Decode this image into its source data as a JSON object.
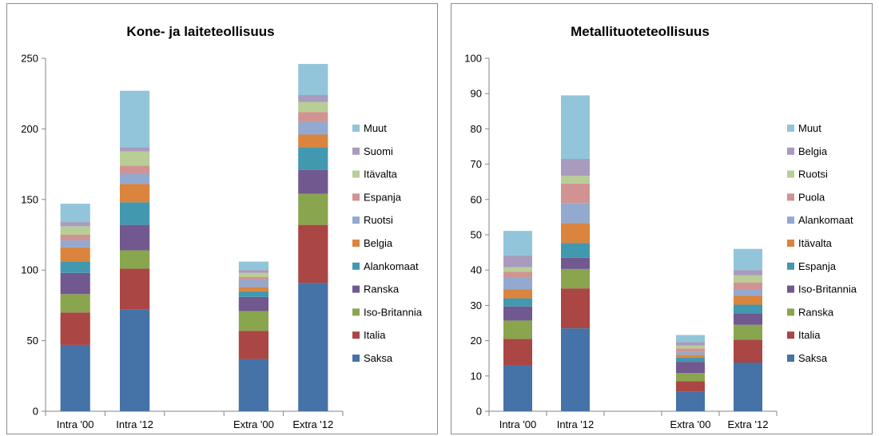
{
  "chart_data": [
    {
      "type": "bar",
      "stacked": true,
      "title": "Kone- ja laiteteollisuus",
      "xlabel": "",
      "ylabel": "",
      "ylim": [
        0,
        250
      ],
      "yticks": [
        0,
        50,
        100,
        150,
        200,
        250
      ],
      "categories": [
        "Intra '00",
        "Intra '12",
        "",
        "Extra '00",
        "Extra '12"
      ],
      "legend_position": "right",
      "grid": false,
      "series": [
        {
          "name": "Saksa",
          "color": "#4572a7",
          "values": [
            47,
            72,
            0,
            37,
            91
          ]
        },
        {
          "name": "Italia",
          "color": "#aa4643",
          "values": [
            23,
            29,
            0,
            20,
            41
          ]
        },
        {
          "name": "Iso-Britannia",
          "color": "#89a54e",
          "values": [
            13,
            13,
            0,
            14,
            22
          ]
        },
        {
          "name": "Ranska",
          "color": "#71588f",
          "values": [
            15,
            18,
            0,
            10,
            17
          ]
        },
        {
          "name": "Alankomaat",
          "color": "#4198af",
          "values": [
            8,
            16,
            0,
            4,
            16
          ]
        },
        {
          "name": "Belgia",
          "color": "#db843d",
          "values": [
            10,
            13,
            0,
            3,
            9
          ]
        },
        {
          "name": "Ruotsi",
          "color": "#93a9cf",
          "values": [
            5,
            7,
            0,
            5,
            9
          ]
        },
        {
          "name": "Espanja",
          "color": "#d19392",
          "values": [
            4,
            6,
            0,
            2,
            7
          ]
        },
        {
          "name": "Itävalta",
          "color": "#b9cd96",
          "values": [
            6,
            10,
            0,
            3,
            7
          ]
        },
        {
          "name": "Suomi",
          "color": "#a99bbd",
          "values": [
            3,
            3,
            0,
            2,
            5
          ]
        },
        {
          "name": "Muut",
          "color": "#92c5d9",
          "values": [
            13,
            40,
            0,
            6,
            22
          ]
        }
      ]
    },
    {
      "type": "bar",
      "stacked": true,
      "title": "Metallituoteteollisuus",
      "xlabel": "",
      "ylabel": "",
      "ylim": [
        0,
        100
      ],
      "yticks": [
        0,
        10,
        20,
        30,
        40,
        50,
        60,
        70,
        80,
        90,
        100
      ],
      "categories": [
        "Intra '00",
        "Intra '12",
        "",
        "Extra '00",
        "Extra '12"
      ],
      "legend_position": "right",
      "grid": false,
      "series": [
        {
          "name": "Saksa",
          "color": "#4572a7",
          "values": [
            13,
            23.5,
            0,
            5.5,
            13.8
          ]
        },
        {
          "name": "Italia",
          "color": "#aa4643",
          "values": [
            7.5,
            11.3,
            0,
            3,
            6.5
          ]
        },
        {
          "name": "Ranska",
          "color": "#89a54e",
          "values": [
            5.2,
            5.5,
            0,
            2.3,
            4.2
          ]
        },
        {
          "name": "Iso-Britannia",
          "color": "#71588f",
          "values": [
            4,
            3.2,
            0,
            3.2,
            3.2
          ]
        },
        {
          "name": "Espanja",
          "color": "#4198af",
          "values": [
            2.3,
            4.2,
            0,
            1.2,
            2.5
          ]
        },
        {
          "name": "Itävalta",
          "color": "#db843d",
          "values": [
            2.5,
            5.6,
            0,
            0.8,
            2.5
          ]
        },
        {
          "name": "Alankomaat",
          "color": "#93a9cf",
          "values": [
            3.5,
            5.7,
            0,
            0.8,
            1.8
          ]
        },
        {
          "name": "Puola",
          "color": "#d19392",
          "values": [
            1.5,
            5.5,
            0,
            1,
            2
          ]
        },
        {
          "name": "Ruotsi",
          "color": "#b9cd96",
          "values": [
            1.3,
            2.2,
            0,
            0.8,
            2
          ]
        },
        {
          "name": "Belgia",
          "color": "#a99bbd",
          "values": [
            3.3,
            4.8,
            0,
            1,
            1.5
          ]
        },
        {
          "name": "Muut",
          "color": "#92c5d9",
          "values": [
            7,
            18,
            0,
            2,
            6
          ]
        }
      ]
    }
  ]
}
